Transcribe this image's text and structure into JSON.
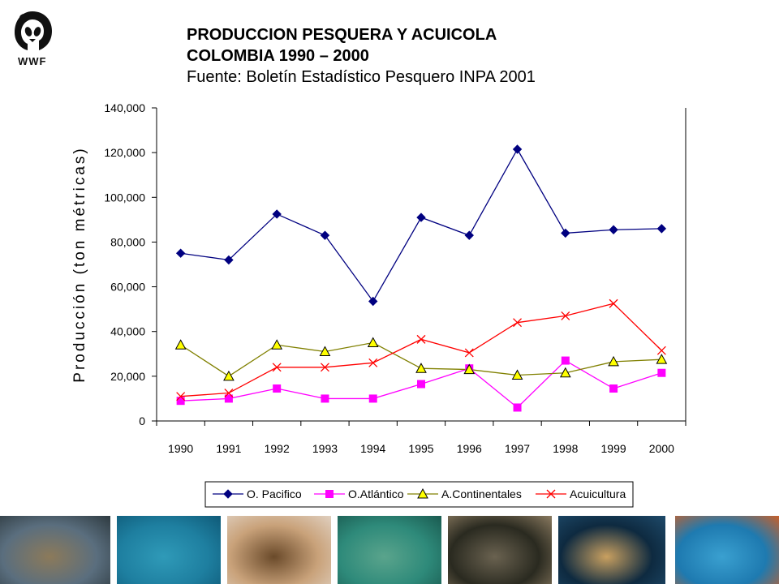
{
  "title": {
    "line1": "PRODUCCION PESQUERA Y ACUICOLA",
    "line2": "COLOMBIA 1990 – 2000",
    "line3": "Fuente: Boletín Estadístico Pesquero INPA 2001"
  },
  "logo": {
    "text": "WWF"
  },
  "chart_data": {
    "type": "line",
    "ylabel": "Producción (ton métricas)",
    "xlabel": "",
    "x": [
      "1990",
      "1991",
      "1992",
      "1993",
      "1994",
      "1995",
      "1996",
      "1997",
      "1998",
      "1999",
      "2000"
    ],
    "ylim": [
      0,
      140000
    ],
    "yticks": [
      0,
      20000,
      40000,
      60000,
      80000,
      100000,
      120000,
      140000
    ],
    "ytick_labels": [
      "0",
      "20,000",
      "40,000",
      "60,000",
      "80,000",
      "100,000",
      "120,000",
      "140,000"
    ],
    "grid": false,
    "legend": "bottom",
    "series": [
      {
        "name": "O. Pacifico",
        "color": "#000080",
        "marker": "diamond",
        "values": [
          75000,
          72000,
          92500,
          83000,
          53500,
          91000,
          83000,
          121500,
          84000,
          85500,
          86000
        ]
      },
      {
        "name": "O.Atlántico",
        "color": "#ff00ff",
        "marker": "square",
        "values": [
          9000,
          10000,
          14500,
          10000,
          10000,
          16500,
          23500,
          6000,
          27000,
          14500,
          21500
        ]
      },
      {
        "name": "A.Continentales",
        "color": "#808000",
        "marker": "triangle",
        "values": [
          34000,
          20000,
          34000,
          31000,
          35000,
          23500,
          23000,
          20500,
          21500,
          26500,
          27500
        ]
      },
      {
        "name": "Acuicultura",
        "color": "#ff0000",
        "marker": "x",
        "values": [
          11000,
          12500,
          24000,
          24000,
          26000,
          36500,
          30500,
          44000,
          47000,
          52500,
          31500
        ]
      }
    ]
  },
  "photos": [
    {
      "name": "beach-turtle-photo",
      "colors": [
        "#5a6e7e",
        "#8c7a5a",
        "#2e3a40"
      ]
    },
    {
      "name": "sea-turtle-underwater-photo",
      "colors": [
        "#1e7fa0",
        "#2f9ab8",
        "#0f5a78"
      ]
    },
    {
      "name": "children-photo",
      "colors": [
        "#c9a27a",
        "#6a4a2a",
        "#e0d0c0"
      ]
    },
    {
      "name": "diver-turtle-photo",
      "colors": [
        "#2e8a7a",
        "#5aa48c",
        "#1a5a50"
      ]
    },
    {
      "name": "researchers-night-photo",
      "colors": [
        "#2a2a20",
        "#6a6250",
        "#8a7a60"
      ]
    },
    {
      "name": "hawksbill-turtle-photo",
      "colors": [
        "#0e2a40",
        "#c9a060",
        "#1e4a6a"
      ]
    },
    {
      "name": "swimming-turtle-photo",
      "colors": [
        "#1e7ab0",
        "#3aa0d0",
        "#c8602a"
      ]
    }
  ]
}
